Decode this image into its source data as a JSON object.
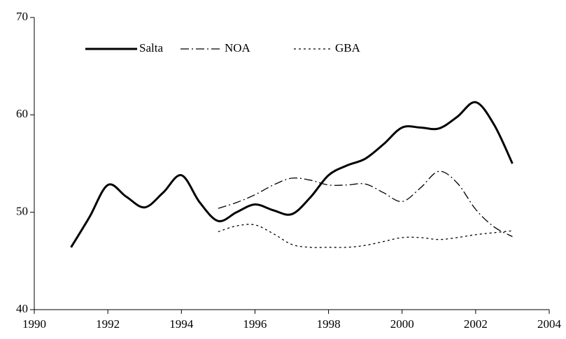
{
  "chart_data": {
    "type": "line",
    "x": [
      1991,
      1991.5,
      1992,
      1992.5,
      1993,
      1993.5,
      1994,
      1994.5,
      1995,
      1995.5,
      1996,
      1996.5,
      1997,
      1997.5,
      1998,
      1998.5,
      1999,
      1999.5,
      2000,
      2000.5,
      2001,
      2001.5,
      2002,
      2002.5,
      2003
    ],
    "series": [
      {
        "name": "Salta",
        "color": "#000000",
        "dash": "solid",
        "width": 3,
        "values": [
          46.4,
          49.5,
          52.8,
          51.6,
          50.5,
          52.0,
          53.8,
          51.0,
          49.1,
          50.0,
          50.8,
          50.2,
          49.8,
          51.5,
          53.8,
          54.8,
          55.5,
          57.0,
          58.7,
          58.7,
          58.6,
          59.8,
          61.3,
          59.0,
          55.0
        ]
      },
      {
        "name": "NOA",
        "color": "#000000",
        "dash": "dashdot",
        "width": 1.3,
        "values": [
          null,
          null,
          null,
          null,
          null,
          null,
          null,
          null,
          50.4,
          51.0,
          51.8,
          52.8,
          53.5,
          53.3,
          52.8,
          52.8,
          52.9,
          52.0,
          51.1,
          52.5,
          54.2,
          53.0,
          50.3,
          48.5,
          47.5
        ]
      },
      {
        "name": "GBA",
        "color": "#000000",
        "dash": "dotted",
        "width": 1.3,
        "values": [
          null,
          null,
          null,
          null,
          null,
          null,
          null,
          null,
          48.0,
          48.6,
          48.7,
          47.8,
          46.7,
          46.4,
          46.4,
          46.4,
          46.6,
          47.0,
          47.4,
          47.4,
          47.2,
          47.4,
          47.7,
          47.9,
          48.1
        ]
      }
    ],
    "xlim": [
      1990,
      2004
    ],
    "xticks": [
      1990,
      1992,
      1994,
      1996,
      1998,
      2000,
      2002,
      2004
    ],
    "ylim": [
      40,
      70
    ],
    "yticks": [
      40,
      50,
      60,
      70
    ],
    "grid": false,
    "legend": "top-left",
    "smooth": true
  }
}
